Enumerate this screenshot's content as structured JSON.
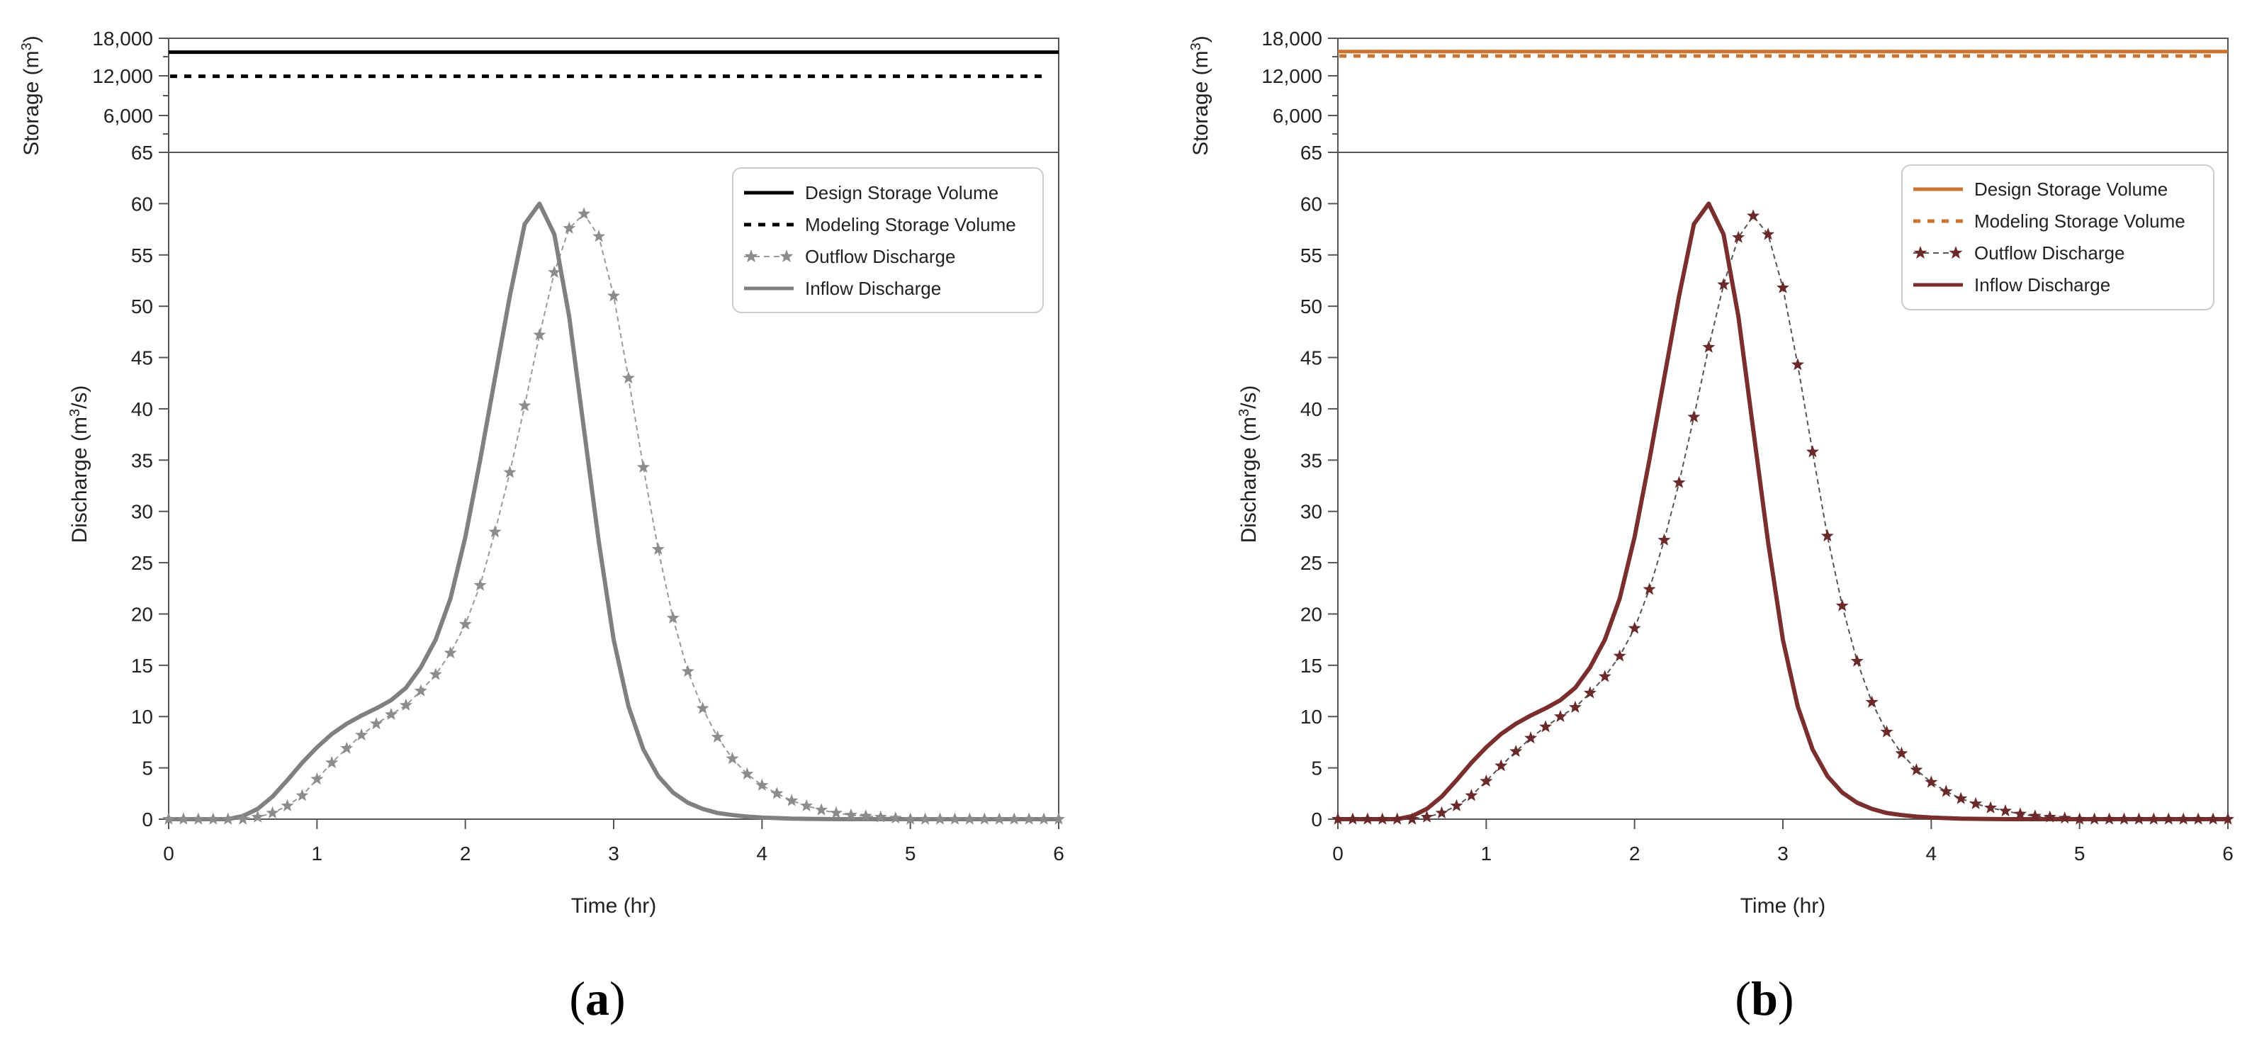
{
  "chart_data": [
    {
      "id": "a",
      "type": "line",
      "panel_label": "a",
      "xlabel": "Time (hr)",
      "xlim": [
        0,
        6
      ],
      "xticks": [
        0,
        1,
        2,
        3,
        4,
        5,
        6
      ],
      "storage_axis": {
        "label": "Storage (m³)",
        "ticks": [
          "18,000",
          "12,000",
          "6,000",
          "65"
        ],
        "design_storage_volume": 15800,
        "modeling_storage_volume": 12000
      },
      "discharge_axis": {
        "label": "Discharge (m³/s)",
        "ylim": [
          0,
          65
        ],
        "ticks": [
          0,
          5,
          10,
          15,
          20,
          25,
          30,
          35,
          40,
          45,
          50,
          55,
          60
        ]
      },
      "legend": {
        "placement": "top-right",
        "entries": [
          "Design Storage Volume",
          "Modeling Storage Volume",
          "Outflow Discharge",
          "Inflow Discharge"
        ]
      },
      "colors": {
        "design": "#000000",
        "modeling": "#000000",
        "outflow_marker": "#8c8c8c",
        "outflow_line": "#9a9a9a",
        "inflow": "#808080"
      },
      "inflow": {
        "x": [
          0,
          0.4,
          0.5,
          0.6,
          0.7,
          0.8,
          0.9,
          1.0,
          1.1,
          1.2,
          1.3,
          1.4,
          1.5,
          1.6,
          1.7,
          1.8,
          1.9,
          2.0,
          2.1,
          2.2,
          2.3,
          2.4,
          2.5,
          2.6,
          2.7,
          2.8,
          2.9,
          3.0,
          3.1,
          3.2,
          3.3,
          3.4,
          3.5,
          3.6,
          3.7,
          3.8,
          3.9,
          4.0,
          4.2,
          4.5,
          5.0,
          6.0
        ],
        "y": [
          0,
          0,
          0.3,
          1,
          2.2,
          3.8,
          5.5,
          7,
          8.3,
          9.3,
          10.1,
          10.8,
          11.6,
          12.8,
          14.8,
          17.5,
          21.5,
          27.5,
          35,
          43,
          51,
          58,
          60,
          57,
          49,
          38,
          27,
          17.5,
          11,
          6.8,
          4.2,
          2.6,
          1.6,
          1,
          0.6,
          0.4,
          0.25,
          0.15,
          0.05,
          0,
          0,
          0
        ]
      },
      "outflow": {
        "x": [
          0,
          0.1,
          0.2,
          0.3,
          0.4,
          0.5,
          0.6,
          0.7,
          0.8,
          0.9,
          1.0,
          1.1,
          1.2,
          1.3,
          1.4,
          1.5,
          1.6,
          1.7,
          1.8,
          1.9,
          2.0,
          2.1,
          2.2,
          2.3,
          2.4,
          2.5,
          2.6,
          2.7,
          2.8,
          2.9,
          3.0,
          3.1,
          3.2,
          3.3,
          3.4,
          3.5,
          3.6,
          3.7,
          3.8,
          3.9,
          4.0,
          4.1,
          4.2,
          4.3,
          4.4,
          4.5,
          4.6,
          4.7,
          4.8,
          4.9,
          5.0,
          5.1,
          5.2,
          5.3,
          5.4,
          5.5,
          5.6,
          5.7,
          5.8,
          5.9,
          6.0
        ],
        "y": [
          0,
          0,
          0,
          0,
          0,
          0,
          0.2,
          0.6,
          1.3,
          2.3,
          3.9,
          5.5,
          6.9,
          8.2,
          9.3,
          10.2,
          11.1,
          12.5,
          14.1,
          16.2,
          19,
          22.8,
          28,
          33.8,
          40.3,
          47.2,
          53.3,
          57.6,
          59.0,
          56.8,
          51,
          43,
          34.3,
          26.3,
          19.6,
          14.4,
          10.8,
          8.0,
          5.9,
          4.4,
          3.3,
          2.5,
          1.8,
          1.3,
          0.9,
          0.6,
          0.4,
          0.3,
          0.2,
          0.1,
          0,
          0,
          0,
          0,
          0,
          0,
          0,
          0,
          0,
          0,
          0
        ]
      }
    },
    {
      "id": "b",
      "type": "line",
      "panel_label": "b",
      "xlabel": "Time (hr)",
      "xlim": [
        0,
        6
      ],
      "xticks": [
        0,
        1,
        2,
        3,
        4,
        5,
        6
      ],
      "storage_axis": {
        "label": "Storage (m³)",
        "ticks": [
          "18,000",
          "12,000",
          "6,000",
          "65"
        ],
        "design_storage_volume": 15900,
        "modeling_storage_volume": 15200
      },
      "discharge_axis": {
        "label": "Discharge (m³/s)",
        "ylim": [
          0,
          65
        ],
        "ticks": [
          0,
          5,
          10,
          15,
          20,
          25,
          30,
          35,
          40,
          45,
          50,
          55,
          60
        ]
      },
      "legend": {
        "placement": "top-right",
        "entries": [
          "Design Storage Volume",
          "Modeling Storage Volume",
          "Outflow Discharge",
          "Inflow Discharge"
        ]
      },
      "colors": {
        "design": "#c87533",
        "modeling": "#c87533",
        "outflow_marker": "#6b2a2a",
        "outflow_line": "#555555",
        "inflow": "#7a2e2e"
      },
      "inflow": {
        "x": [
          0,
          0.4,
          0.5,
          0.6,
          0.7,
          0.8,
          0.9,
          1.0,
          1.1,
          1.2,
          1.3,
          1.4,
          1.5,
          1.6,
          1.7,
          1.8,
          1.9,
          2.0,
          2.1,
          2.2,
          2.3,
          2.4,
          2.5,
          2.6,
          2.7,
          2.8,
          2.9,
          3.0,
          3.1,
          3.2,
          3.3,
          3.4,
          3.5,
          3.6,
          3.7,
          3.8,
          3.9,
          4.0,
          4.2,
          4.5,
          5.0,
          6.0
        ],
        "y": [
          0,
          0,
          0.3,
          1,
          2.2,
          3.8,
          5.5,
          7,
          8.3,
          9.3,
          10.1,
          10.8,
          11.6,
          12.8,
          14.8,
          17.5,
          21.5,
          27.5,
          35,
          43,
          51,
          58,
          60,
          57,
          49,
          38,
          27,
          17.5,
          11,
          6.8,
          4.2,
          2.6,
          1.6,
          1,
          0.6,
          0.4,
          0.25,
          0.15,
          0.05,
          0,
          0,
          0
        ]
      },
      "outflow": {
        "x": [
          0,
          0.1,
          0.2,
          0.3,
          0.4,
          0.5,
          0.6,
          0.7,
          0.8,
          0.9,
          1.0,
          1.1,
          1.2,
          1.3,
          1.4,
          1.5,
          1.6,
          1.7,
          1.8,
          1.9,
          2.0,
          2.1,
          2.2,
          2.3,
          2.4,
          2.5,
          2.6,
          2.7,
          2.8,
          2.9,
          3.0,
          3.1,
          3.2,
          3.3,
          3.4,
          3.5,
          3.6,
          3.7,
          3.8,
          3.9,
          4.0,
          4.1,
          4.2,
          4.3,
          4.4,
          4.5,
          4.6,
          4.7,
          4.8,
          4.9,
          5.0,
          5.1,
          5.2,
          5.3,
          5.4,
          5.5,
          5.6,
          5.7,
          5.8,
          5.9,
          6.0
        ],
        "y": [
          0,
          0,
          0,
          0,
          0,
          0,
          0.2,
          0.6,
          1.3,
          2.3,
          3.7,
          5.2,
          6.6,
          7.9,
          9.0,
          10.0,
          10.9,
          12.3,
          13.9,
          15.9,
          18.6,
          22.4,
          27.2,
          32.8,
          39.2,
          46.0,
          52.1,
          56.7,
          58.8,
          57.0,
          51.8,
          44.3,
          35.8,
          27.6,
          20.8,
          15.4,
          11.4,
          8.5,
          6.4,
          4.8,
          3.6,
          2.7,
          2.0,
          1.5,
          1.1,
          0.8,
          0.5,
          0.3,
          0.2,
          0.1,
          0,
          0,
          0,
          0,
          0,
          0,
          0,
          0,
          0,
          0,
          0
        ]
      }
    }
  ]
}
